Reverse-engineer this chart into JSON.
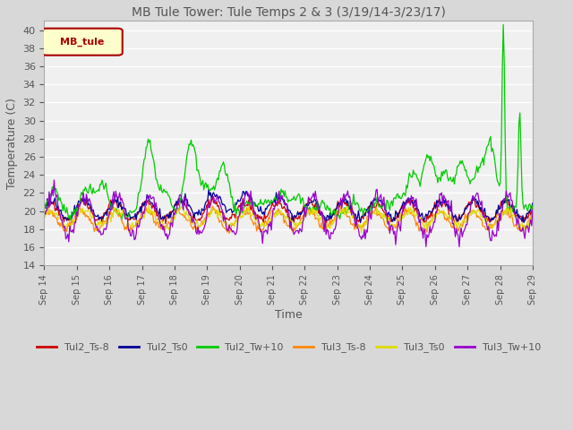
{
  "title": "MB Tule Tower: Tule Temps 2 & 3 (3/19/14-3/23/17)",
  "xlabel": "Time",
  "ylabel": "Temperature (C)",
  "ylim": [
    14,
    41
  ],
  "yticks": [
    14,
    16,
    18,
    20,
    22,
    24,
    26,
    28,
    30,
    32,
    34,
    36,
    38,
    40
  ],
  "legend_label": "MB_tule",
  "series_labels": [
    "Tul2_Ts-8",
    "Tul2_Ts0",
    "Tul2_Tw+10",
    "Tul3_Ts-8",
    "Tul3_Ts0",
    "Tul3_Tw+10"
  ],
  "series_colors": [
    "#cc0000",
    "#000099",
    "#00cc00",
    "#ff8800",
    "#dddd00",
    "#9900cc"
  ],
  "x_tick_labels": [
    "Sep 14",
    "Sep 15",
    "Sep 16",
    "Sep 17",
    "Sep 18",
    "Sep 19",
    "Sep 20",
    "Sep 21",
    "Sep 22",
    "Sep 23",
    "Sep 24",
    "Sep 25",
    "Sep 26",
    "Sep 27",
    "Sep 28",
    "Sep 29"
  ],
  "plot_bg_color": "#f0f0f0",
  "fig_bg_color": "#d8d8d8",
  "grid_color": "#ffffff",
  "title_color": "#555555",
  "legend_box_color": "#ffffcc",
  "legend_box_edge": "#aa0000",
  "legend_text_color": "#aa0000"
}
